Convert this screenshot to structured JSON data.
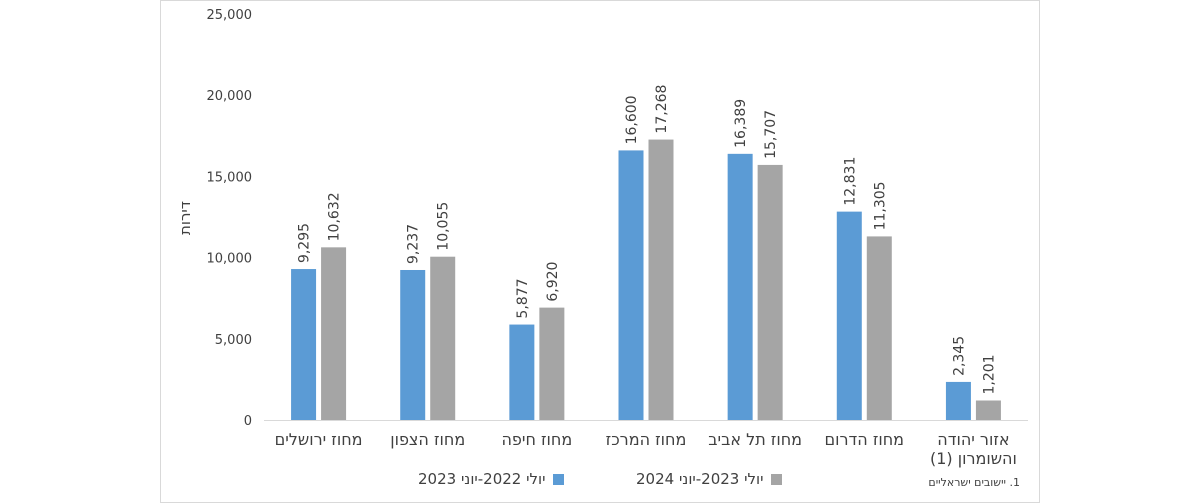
{
  "chart_data": {
    "type": "bar",
    "ylabel": "דירות",
    "ylim": [
      0,
      25000
    ],
    "yticks": [
      0,
      5000,
      10000,
      15000,
      20000,
      25000
    ],
    "ytick_labels": [
      "0",
      "5,000",
      "10,000",
      "15,000",
      "20,000",
      "25,000"
    ],
    "grid": false,
    "legend_position": "bottom",
    "categories": [
      [
        "מחוז ירושלים"
      ],
      [
        "מחוז הצפון"
      ],
      [
        "מחוז חיפה"
      ],
      [
        "מחוז המרכז"
      ],
      [
        "מחוז תל אביב"
      ],
      [
        "מחוז הדרום"
      ],
      [
        "אזור יהודה",
        "והשומרון (1)"
      ]
    ],
    "series": [
      {
        "name": "יולי 2022-יוני 2023",
        "color": "#5b9bd5",
        "values": [
          9295,
          9237,
          5877,
          16600,
          16389,
          12831,
          2345
        ],
        "labels": [
          "9,295",
          "9,237",
          "5,877",
          "16,600",
          "16,389",
          "12,831",
          "2,345"
        ]
      },
      {
        "name": "יולי 2023-יוני 2024",
        "color": "#a5a5a5",
        "values": [
          10632,
          10055,
          6920,
          17268,
          15707,
          11305,
          1201
        ],
        "labels": [
          "10,632",
          "10,055",
          "6,920",
          "17,268",
          "15,707",
          "11,305",
          "1,201"
        ]
      }
    ]
  },
  "footnote": "1. יישובים ישראליים"
}
